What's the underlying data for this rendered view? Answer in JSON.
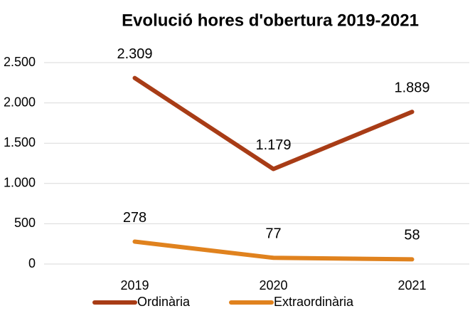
{
  "chart_data": {
    "type": "line",
    "title": "Evolució hores d'obertura 2019-2021",
    "categories": [
      "2019",
      "2020",
      "2021"
    ],
    "series": [
      {
        "name": "Ordinària",
        "color": "#a83c16",
        "values": [
          2309,
          1179,
          1889
        ],
        "value_labels": [
          "2.309",
          "1.179",
          "1.889"
        ]
      },
      {
        "name": "Extraordinària",
        "color": "#e0821e",
        "values": [
          278,
          77,
          58
        ]
      }
    ],
    "ylim": [
      0,
      2500
    ],
    "yticks": [
      0,
      500,
      {
        "value": 1000,
        "label": "1.000"
      },
      {
        "value": 1500,
        "label": "1.500"
      },
      {
        "value": 2000,
        "label": "2.000"
      },
      {
        "value": 2500,
        "label": "2.500"
      }
    ],
    "grid": true,
    "legend": "bottom"
  }
}
